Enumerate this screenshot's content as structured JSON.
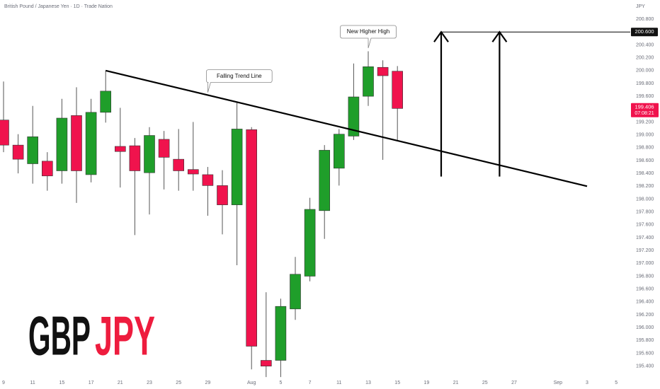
{
  "chart_data": {
    "type": "candlestick",
    "title": "British Pound / Japanese Yen · 1D · Trade Nation",
    "currency": "JPY",
    "watermark": [
      "GBP",
      "JPY"
    ],
    "categories": [
      "9",
      null,
      "11",
      null,
      "15",
      null,
      "17",
      null,
      "21",
      null,
      "23",
      null,
      "25",
      null,
      "29",
      null,
      null,
      "Aug",
      null,
      "5",
      null,
      "7",
      null,
      "11",
      null,
      "13",
      null,
      "15",
      null,
      "19",
      null,
      "21",
      null,
      "25",
      null,
      "27",
      null,
      null,
      "Sep",
      null,
      "3",
      null,
      "5"
    ],
    "open": [
      199.23,
      198.84,
      198.55,
      198.59,
      198.44,
      199.3,
      198.38,
      199.35,
      198.82,
      198.83,
      198.41,
      198.93,
      198.62,
      198.46,
      198.38,
      198.21,
      197.91,
      199.08,
      195.49,
      195.49,
      196.29,
      196.8,
      197.82,
      198.48,
      198.98,
      199.6,
      200.05,
      199.99,
      null,
      null,
      null,
      null,
      null,
      null,
      null,
      null,
      null,
      null,
      null,
      null,
      null,
      null,
      null
    ],
    "high": [
      199.83,
      199.01,
      199.45,
      198.73,
      199.56,
      199.74,
      199.56,
      200.0,
      199.42,
      198.95,
      199.12,
      199.06,
      199.09,
      199.2,
      198.5,
      198.45,
      199.5,
      199.12,
      196.55,
      196.45,
      197.1,
      198.02,
      198.84,
      199.09,
      200.11,
      200.3,
      200.16,
      200.07,
      null,
      null,
      null,
      null,
      null,
      null,
      null,
      null,
      null,
      null,
      null,
      null,
      null,
      null,
      null
    ],
    "low": [
      198.73,
      198.4,
      198.24,
      198.13,
      198.24,
      197.94,
      198.26,
      199.19,
      198.18,
      197.44,
      197.76,
      198.15,
      198.13,
      198.13,
      197.74,
      197.45,
      196.97,
      195.35,
      195.23,
      195.23,
      196.12,
      196.72,
      197.38,
      198.21,
      198.92,
      199.45,
      198.61,
      198.92,
      null,
      null,
      null,
      null,
      null,
      null,
      null,
      null,
      null,
      null,
      null,
      null,
      null,
      null,
      null
    ],
    "close": [
      198.84,
      198.62,
      198.97,
      198.36,
      199.26,
      198.44,
      199.35,
      199.68,
      198.74,
      198.44,
      198.99,
      198.65,
      198.44,
      198.39,
      198.21,
      197.91,
      199.09,
      195.71,
      195.4,
      196.33,
      196.83,
      197.84,
      198.76,
      199.01,
      199.59,
      200.06,
      199.92,
      199.41,
      null,
      null,
      null,
      null,
      null,
      null,
      null,
      null,
      null,
      null,
      null,
      null,
      null,
      null,
      null
    ],
    "up_color": "#1f9e2a",
    "down_color": "#f0134d",
    "ylim": [
      195.26,
      200.9
    ],
    "yticks": [
      {
        "value": 200.8,
        "label": "200.800"
      },
      {
        "value": 200.4,
        "label": "200.400"
      },
      {
        "value": 200.2,
        "label": "200.200"
      },
      {
        "value": 200.0,
        "label": "200.000"
      },
      {
        "value": 199.8,
        "label": "199.800"
      },
      {
        "value": 199.6,
        "label": "199.600"
      },
      {
        "value": 199.2,
        "label": "199.200"
      },
      {
        "value": 199.0,
        "label": "199.000"
      },
      {
        "value": 198.8,
        "label": "198.800"
      },
      {
        "value": 198.6,
        "label": "198.600"
      },
      {
        "value": 198.4,
        "label": "198.400"
      },
      {
        "value": 198.2,
        "label": "198.200"
      },
      {
        "value": 198.0,
        "label": "198.000"
      },
      {
        "value": 197.8,
        "label": "197.800"
      },
      {
        "value": 197.6,
        "label": "197.600"
      },
      {
        "value": 197.4,
        "label": "197.400"
      },
      {
        "value": 197.2,
        "label": "197.200"
      },
      {
        "value": 197.0,
        "label": "197.000"
      },
      {
        "value": 196.8,
        "label": "196.800"
      },
      {
        "value": 196.6,
        "label": "196.600"
      },
      {
        "value": 196.4,
        "label": "196.400"
      },
      {
        "value": 196.2,
        "label": "196.200"
      },
      {
        "value": 196.0,
        "label": "196.000"
      },
      {
        "value": 195.8,
        "label": "195.800"
      },
      {
        "value": 195.6,
        "label": "195.600"
      },
      {
        "value": 195.4,
        "label": "195.400"
      }
    ],
    "last_price": 199.406,
    "countdown": "07:08:21",
    "level": {
      "value": 200.6,
      "label": "200.600",
      "x": 30
    },
    "trend_line": {
      "x": [
        7,
        40
      ],
      "y": [
        200.0,
        198.2
      ]
    },
    "arrows": [
      {
        "x": 30,
        "from": 198.35,
        "to": 200.6
      },
      {
        "x": 34,
        "from": 198.35,
        "to": 200.6
      }
    ],
    "annotations": [
      {
        "text": "New Higher High",
        "x": 25,
        "y": 200.35
      },
      {
        "text": "Falling Trend Line",
        "x": 14,
        "y": 199.66
      }
    ]
  }
}
